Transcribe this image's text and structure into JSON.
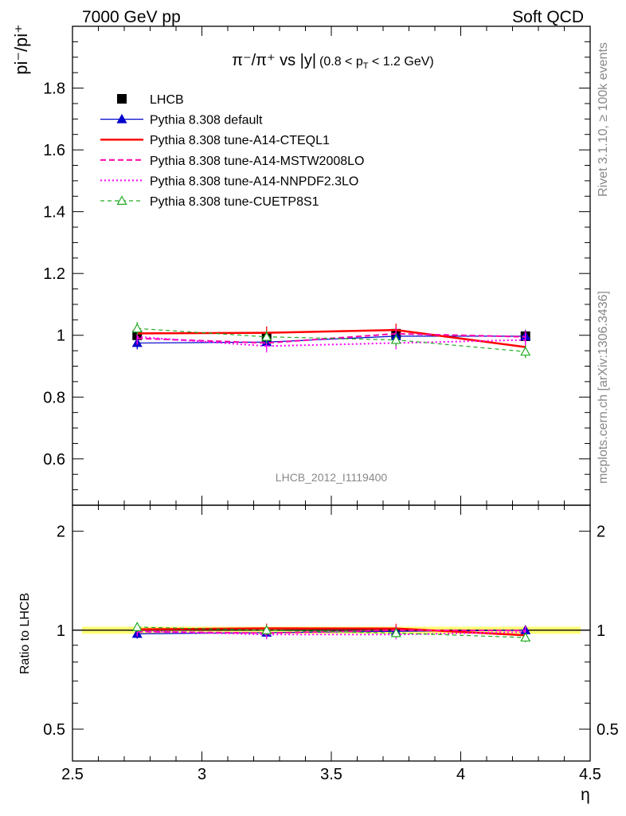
{
  "header": {
    "left": "7000 GeV pp",
    "right": "Soft QCD"
  },
  "side_text": {
    "rivet": "Rivet 3.1.10, ≥ 100k events",
    "mcplots": "mcplots.cern.ch [arXiv:1306.3436]"
  },
  "analysis_id": "LHCB_2012_I1119400",
  "chart_data": [
    {
      "type": "line",
      "title_parts": {
        "main": "π⁻/π⁺ vs |y|",
        "cut": "(0.8 < p",
        "cut_sub": "T",
        "cut_end": " < 1.2 GeV)"
      },
      "ylabel": "pi⁻/pi⁺",
      "xlabel": "η",
      "xlim": [
        2.5,
        4.5
      ],
      "ylim": [
        0.45,
        2.0
      ],
      "x_ticks": [
        "2.5",
        "3",
        "3.5",
        "4",
        "4.5"
      ],
      "y_ticks": [
        "0.6",
        "0.8",
        "1",
        "1.2",
        "1.4",
        "1.6",
        "1.8"
      ],
      "legend_position": "top-left",
      "x": [
        2.75,
        3.25,
        3.75,
        4.25
      ],
      "series": [
        {
          "name": "LHCB",
          "values": [
            1.0,
            0.995,
            1.005,
            0.997
          ],
          "errors": [
            0.01,
            0.012,
            0.012,
            0.01
          ],
          "color": "#000000",
          "style": "data"
        },
        {
          "name": "Pythia 8.308 default",
          "values": [
            0.975,
            0.978,
            0.997,
            0.997
          ],
          "color": "#0000cc",
          "style": "solid-thin",
          "marker": "triangle-filled"
        },
        {
          "name": "Pythia 8.308 tune-A14-CTEQL1",
          "values": [
            1.006,
            1.008,
            1.017,
            0.962
          ],
          "color": "#ff0000",
          "style": "solid-thick"
        },
        {
          "name": "Pythia 8.308 tune-A14-MSTW2008LO",
          "values": [
            0.99,
            0.975,
            1.005,
            0.995
          ],
          "color": "#ff00aa",
          "style": "dashed"
        },
        {
          "name": "Pythia 8.308 tune-A14-NNPDF2.3LO",
          "values": [
            0.995,
            0.965,
            0.975,
            0.985
          ],
          "color": "#ff00ff",
          "style": "dotted"
        },
        {
          "name": "Pythia 8.308 tune-CUETP8S1",
          "values": [
            1.022,
            0.995,
            0.985,
            0.947
          ],
          "color": "#22aa22",
          "style": "dashed-thin",
          "marker": "triangle-open"
        }
      ]
    },
    {
      "type": "line",
      "ylabel": "Ratio to LHCB",
      "xlim": [
        2.5,
        4.5
      ],
      "ylim": [
        0.4,
        2.4
      ],
      "log_scale_y": true,
      "x_ticks": [
        "2.5",
        "3",
        "3.5",
        "4",
        "4.5"
      ],
      "y_ticks": [
        "0.5",
        "1",
        "2"
      ],
      "x": [
        2.75,
        3.25,
        3.75,
        4.25
      ],
      "band": {
        "low": 0.975,
        "high": 1.025,
        "color": "#ffff77"
      },
      "series": [
        {
          "name": "Pythia 8.308 default",
          "values": [
            0.975,
            0.983,
            0.992,
            1.0
          ],
          "color": "#0000cc"
        },
        {
          "name": "Pythia 8.308 tune-A14-CTEQL1",
          "values": [
            1.006,
            1.013,
            1.012,
            0.965
          ],
          "color": "#ff0000"
        },
        {
          "name": "Pythia 8.308 tune-A14-MSTW2008LO",
          "values": [
            0.99,
            0.98,
            1.0,
            0.998
          ],
          "color": "#ff00aa"
        },
        {
          "name": "Pythia 8.308 tune-A14-NNPDF2.3LO",
          "values": [
            0.995,
            0.97,
            0.97,
            0.988
          ],
          "color": "#ff00ff"
        },
        {
          "name": "Pythia 8.308 tune-CUETP8S1",
          "values": [
            1.022,
            1.0,
            0.98,
            0.95
          ],
          "color": "#22aa22"
        }
      ]
    }
  ]
}
